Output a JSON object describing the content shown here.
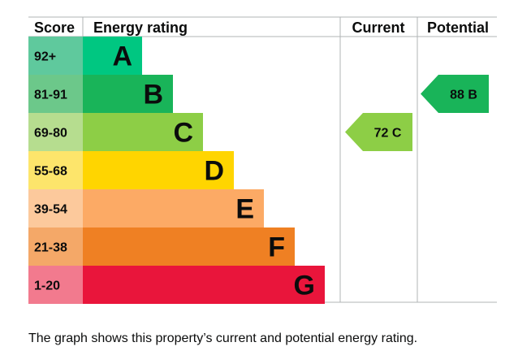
{
  "chart_data": {
    "type": "table",
    "headers": {
      "score": "Score",
      "rating": "Energy rating",
      "current": "Current",
      "potential": "Potential"
    },
    "bands": [
      {
        "score": "92+",
        "letter": "A",
        "color": "#00c781",
        "score_color": "#5fc99d"
      },
      {
        "score": "81-91",
        "letter": "B",
        "color": "#19b459",
        "score_color": "#6cc88a"
      },
      {
        "score": "69-80",
        "letter": "C",
        "color": "#8dce46",
        "score_color": "#b6dd8f"
      },
      {
        "score": "55-68",
        "letter": "D",
        "color": "#ffd500",
        "score_color": "#fde56b"
      },
      {
        "score": "39-54",
        "letter": "E",
        "color": "#fcaa65",
        "score_color": "#fcc99c"
      },
      {
        "score": "21-38",
        "letter": "F",
        "color": "#ef8023",
        "score_color": "#f4a868"
      },
      {
        "score": "1-20",
        "letter": "G",
        "color": "#e9153b",
        "score_color": "#f27a8e"
      }
    ],
    "current": {
      "value": 72,
      "letter": "C",
      "label": "72 C",
      "color": "#8dce46"
    },
    "potential": {
      "value": 88,
      "letter": "B",
      "label": "88 B",
      "color": "#19b459"
    }
  },
  "caption": "The graph shows this property’s current and potential energy rating."
}
